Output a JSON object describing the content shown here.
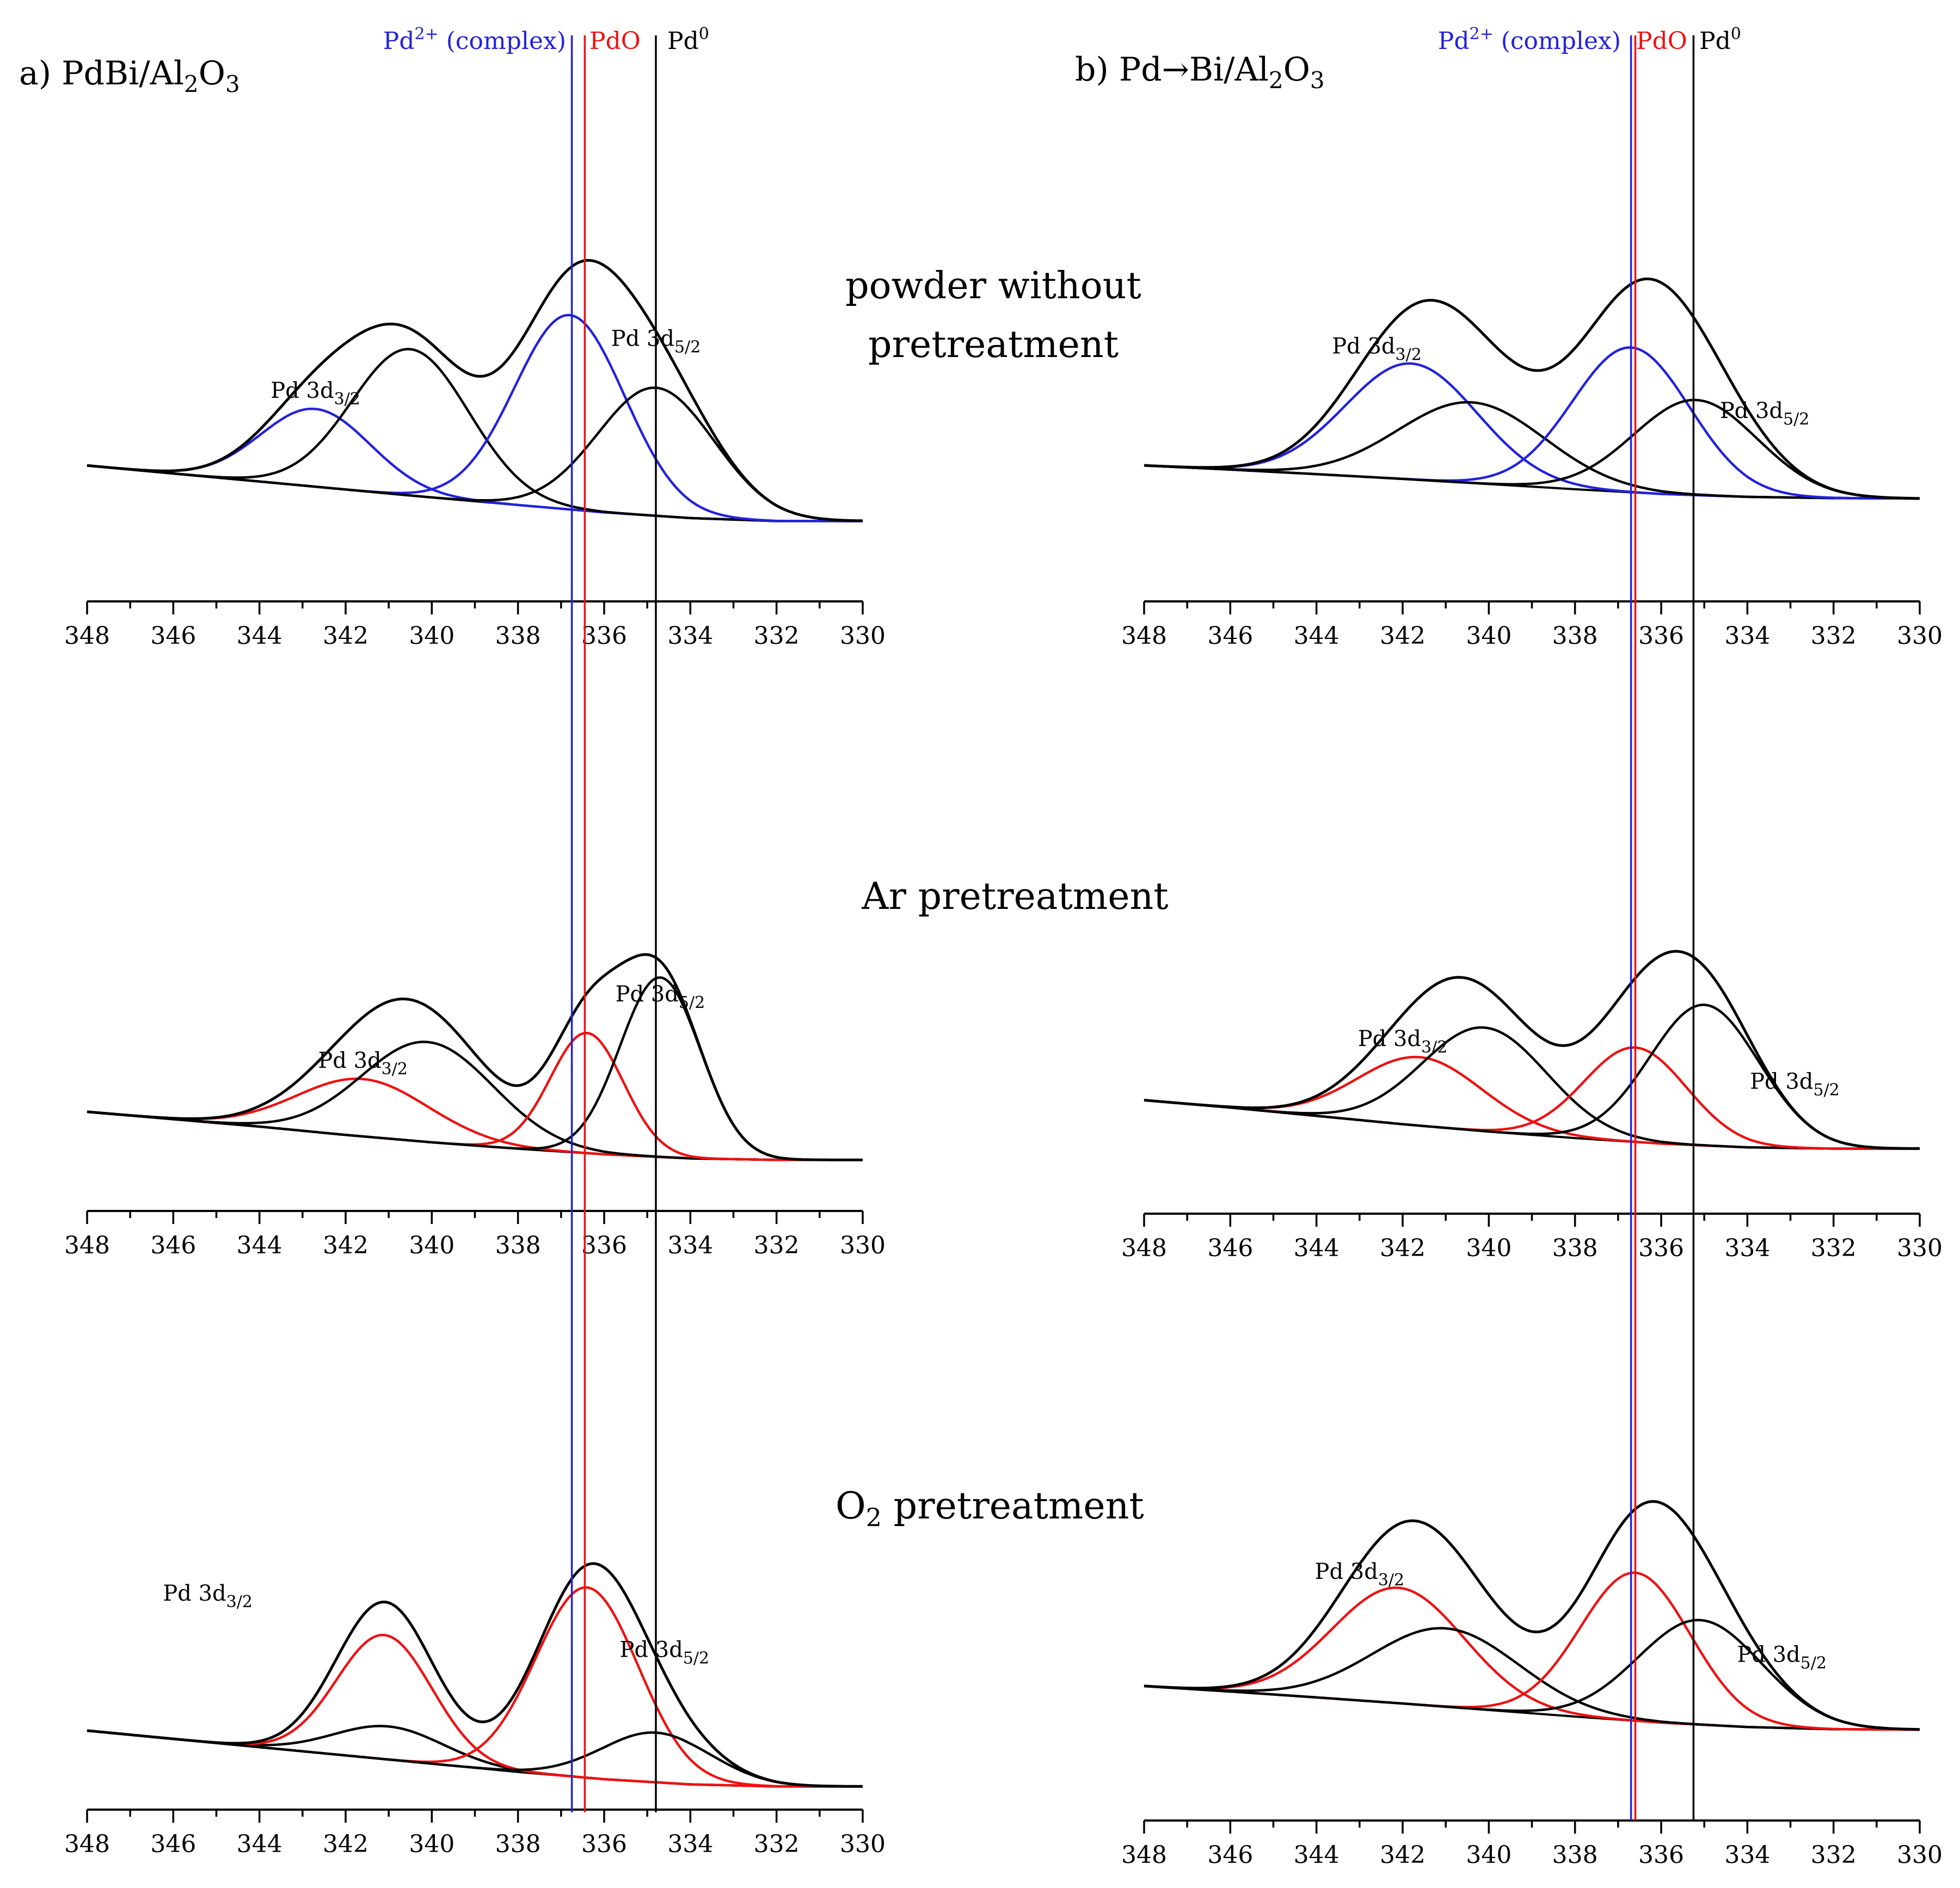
{
  "figure": {
    "panel_titles": {
      "a": [
        "a) PdBi/Al",
        "2",
        "O",
        "3"
      ],
      "b": [
        "b) Pd→Bi/Al",
        "2",
        "O",
        "3"
      ]
    },
    "row_labels": {
      "powder_line1": "powder without",
      "powder_line2": "pretreatment",
      "ar": "Ar pretreatment",
      "o2_main": "O",
      "o2_sub": "2",
      "o2_rest": " pretreatment"
    },
    "marker_labels": {
      "pd2_main": "Pd",
      "pd2_sup": "2+",
      "pd2_rest": " (complex)",
      "pdo": "PdO",
      "pd0_main": "Pd",
      "pd0_sup": "0"
    },
    "peak_labels": {
      "d32_main": "Pd 3d",
      "d32_sub": "3/2",
      "d52_main": "Pd 3d",
      "d52_sub": "5/2"
    },
    "colors": {
      "pd2_complex": "#2222dd",
      "pdo": "#ee1111",
      "pd0": "#000000"
    }
  },
  "chart_data": [
    {
      "id": "a-powder",
      "panel": "a",
      "row": "powder without pretreatment",
      "type": "line",
      "xlabel": "",
      "ylabel": "",
      "xlim": [
        348,
        330
      ],
      "x_reversed": true,
      "xticks": [
        348,
        346,
        344,
        342,
        340,
        338,
        336,
        334,
        332,
        330
      ],
      "background": [
        [
          348,
          2.85
        ],
        [
          346,
          2.5
        ],
        [
          344,
          2.15
        ],
        [
          342,
          1.8
        ],
        [
          340,
          1.45
        ],
        [
          338,
          1.12
        ],
        [
          336,
          0.8
        ],
        [
          334,
          0.55
        ],
        [
          332,
          0.42
        ],
        [
          330,
          0.42
        ]
      ],
      "components": [
        {
          "color": "blue",
          "center": 342.7,
          "height": 3.4,
          "fwhm": 3.0
        },
        {
          "color": "black",
          "center": 340.5,
          "height": 6.4,
          "fwhm": 3.2
        },
        {
          "color": "blue",
          "center": 336.8,
          "height": 8.5,
          "fwhm": 3.0
        },
        {
          "color": "black",
          "center": 334.8,
          "height": 5.6,
          "fwhm": 3.2
        }
      ],
      "peak_labels": [
        {
          "label": "Pd 3d3/2",
          "x": 342.7
        },
        {
          "label": "Pd 3d5/2",
          "x": 334.8
        }
      ]
    },
    {
      "id": "a-ar",
      "panel": "a",
      "row": "Ar pretreatment",
      "type": "line",
      "xlabel": "",
      "ylabel": "",
      "xlim": [
        348,
        330
      ],
      "x_reversed": true,
      "xticks": [
        348,
        346,
        344,
        342,
        340,
        338,
        336,
        334,
        332,
        330
      ],
      "background": [
        [
          348,
          2.8
        ],
        [
          346,
          2.4
        ],
        [
          344,
          2.0
        ],
        [
          342,
          1.55
        ],
        [
          340,
          1.15
        ],
        [
          338,
          0.8
        ],
        [
          336,
          0.5
        ],
        [
          334,
          0.28
        ],
        [
          332,
          0.2
        ],
        [
          330,
          0.2
        ]
      ],
      "components": [
        {
          "color": "red",
          "center": 341.6,
          "height": 3.1,
          "fwhm": 3.6
        },
        {
          "color": "black",
          "center": 340.1,
          "height": 5.4,
          "fwhm": 3.6
        },
        {
          "color": "red",
          "center": 336.4,
          "height": 6.5,
          "fwhm": 2.0
        },
        {
          "color": "black",
          "center": 334.7,
          "height": 9.7,
          "fwhm": 2.2
        }
      ],
      "peak_labels": [
        {
          "label": "Pd 3d3/2",
          "x": 341.6
        },
        {
          "label": "Pd 3d5/2",
          "x": 334.7
        }
      ]
    },
    {
      "id": "a-o2",
      "panel": "a",
      "row": "O2 pretreatment",
      "type": "line",
      "xlabel": "",
      "ylabel": "",
      "xlim": [
        348,
        330
      ],
      "x_reversed": true,
      "xticks": [
        348,
        346,
        344,
        342,
        340,
        338,
        336,
        334,
        332,
        330
      ],
      "background": [
        [
          348,
          2.9
        ],
        [
          346,
          2.5
        ],
        [
          344,
          2.1
        ],
        [
          342,
          1.7
        ],
        [
          340,
          1.3
        ],
        [
          338,
          0.9
        ],
        [
          336,
          0.55
        ],
        [
          334,
          0.3
        ],
        [
          332,
          0.2
        ],
        [
          330,
          0.2
        ]
      ],
      "components": [
        {
          "color": "black",
          "center": 341.0,
          "height": 1.6,
          "fwhm": 3.0
        },
        {
          "color": "red",
          "center": 341.1,
          "height": 6.0,
          "fwhm": 2.6
        },
        {
          "color": "red",
          "center": 336.4,
          "height": 9.2,
          "fwhm": 2.8
        },
        {
          "color": "black",
          "center": 334.8,
          "height": 2.4,
          "fwhm": 3.0
        }
      ],
      "peak_labels": [
        {
          "label": "Pd 3d3/2",
          "x": 345.2
        },
        {
          "label": "Pd 3d5/2",
          "x": 334.6
        }
      ]
    },
    {
      "id": "b-powder",
      "panel": "b",
      "row": "powder without pretreatment",
      "type": "line",
      "xlabel": "",
      "ylabel": "",
      "xlim": [
        348,
        330
      ],
      "x_reversed": true,
      "xticks": [
        348,
        346,
        344,
        342,
        340,
        338,
        336,
        334,
        332,
        330
      ],
      "background": [
        [
          348,
          2.1
        ],
        [
          346,
          1.9
        ],
        [
          344,
          1.68
        ],
        [
          342,
          1.45
        ],
        [
          340,
          1.2
        ],
        [
          338,
          0.95
        ],
        [
          336,
          0.72
        ],
        [
          334,
          0.58
        ],
        [
          332,
          0.52
        ],
        [
          330,
          0.5
        ]
      ],
      "components": [
        {
          "color": "blue",
          "center": 341.8,
          "height": 5.6,
          "fwhm": 3.6
        },
        {
          "color": "black",
          "center": 340.4,
          "height": 3.9,
          "fwhm": 4.0
        },
        {
          "color": "blue",
          "center": 336.7,
          "height": 7.0,
          "fwhm": 3.2
        },
        {
          "color": "black",
          "center": 335.2,
          "height": 4.6,
          "fwhm": 3.4
        }
      ],
      "peak_labels": [
        {
          "label": "Pd 3d3/2",
          "x": 342.6
        },
        {
          "label": "Pd 3d5/2",
          "x": 333.6
        }
      ]
    },
    {
      "id": "b-ar",
      "panel": "b",
      "row": "Ar pretreatment",
      "type": "line",
      "xlabel": "",
      "ylabel": "",
      "xlim": [
        348,
        330
      ],
      "x_reversed": true,
      "xticks": [
        348,
        346,
        344,
        342,
        340,
        338,
        336,
        334,
        332,
        330
      ],
      "background": [
        [
          348,
          2.9
        ],
        [
          346,
          2.5
        ],
        [
          344,
          2.05
        ],
        [
          342,
          1.6
        ],
        [
          340,
          1.2
        ],
        [
          338,
          0.85
        ],
        [
          336,
          0.55
        ],
        [
          334,
          0.35
        ],
        [
          332,
          0.28
        ],
        [
          330,
          0.28
        ]
      ],
      "components": [
        {
          "color": "red",
          "center": 341.6,
          "height": 3.7,
          "fwhm": 3.4
        },
        {
          "color": "black",
          "center": 340.1,
          "height": 5.6,
          "fwhm": 3.4
        },
        {
          "color": "red",
          "center": 336.6,
          "height": 5.1,
          "fwhm": 2.8
        },
        {
          "color": "black",
          "center": 335.0,
          "height": 7.6,
          "fwhm": 3.0
        }
      ],
      "peak_labels": [
        {
          "label": "Pd 3d3/2",
          "x": 342.0
        },
        {
          "label": "Pd 3d5/2",
          "x": 332.9
        }
      ]
    },
    {
      "id": "b-o2",
      "panel": "b",
      "row": "O2 pretreatment",
      "type": "line",
      "xlabel": "",
      "ylabel": "",
      "xlim": [
        348,
        330
      ],
      "x_reversed": true,
      "xticks": [
        348,
        346,
        344,
        342,
        340,
        338,
        336,
        334,
        332,
        330
      ],
      "background": [
        [
          348,
          2.3
        ],
        [
          346,
          2.05
        ],
        [
          344,
          1.78
        ],
        [
          342,
          1.5
        ],
        [
          340,
          1.2
        ],
        [
          338,
          0.9
        ],
        [
          336,
          0.62
        ],
        [
          334,
          0.42
        ],
        [
          332,
          0.32
        ],
        [
          330,
          0.3
        ]
      ],
      "components": [
        {
          "color": "red",
          "center": 342.1,
          "height": 5.3,
          "fwhm": 3.6
        },
        {
          "color": "black",
          "center": 341.0,
          "height": 3.6,
          "fwhm": 4.0
        },
        {
          "color": "red",
          "center": 336.6,
          "height": 6.8,
          "fwhm": 3.0
        },
        {
          "color": "black",
          "center": 335.1,
          "height": 4.8,
          "fwhm": 3.4
        }
      ],
      "peak_labels": [
        {
          "label": "Pd 3d3/2",
          "x": 343.0
        },
        {
          "label": "Pd 3d5/2",
          "x": 333.2
        }
      ]
    }
  ],
  "reference_lines": [
    {
      "panel": "a",
      "label": "Pd2+ (complex)",
      "color": "blue",
      "x": 336.75
    },
    {
      "panel": "a",
      "label": "PdO",
      "color": "red",
      "x": 336.45
    },
    {
      "panel": "a",
      "label": "Pd0",
      "color": "black",
      "x": 334.8
    },
    {
      "panel": "b",
      "label": "Pd2+ (complex)",
      "color": "blue",
      "x": 336.7
    },
    {
      "panel": "b",
      "label": "PdO",
      "color": "red",
      "x": 336.6
    },
    {
      "panel": "b",
      "label": "Pd0",
      "color": "black",
      "x": 335.25
    }
  ]
}
